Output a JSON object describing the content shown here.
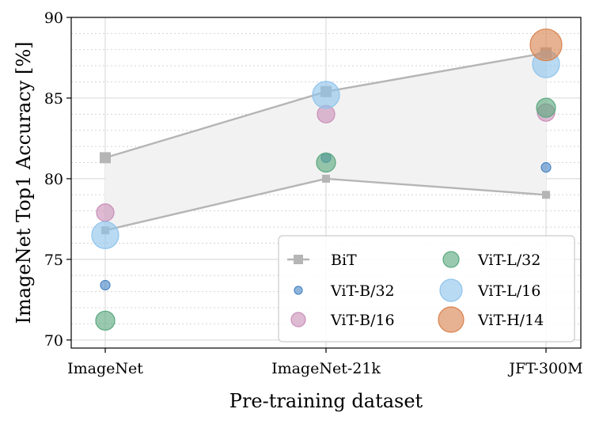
{
  "chart_data": {
    "type": "scatter",
    "title": "",
    "xlabel": "Pre-training dataset",
    "ylabel": "ImageNet Top1 Accuracy [%]",
    "categories": [
      "ImageNet",
      "ImageNet-21k",
      "JFT-300M"
    ],
    "ylim": [
      69.5,
      90
    ],
    "yticks": [
      70,
      75,
      80,
      85,
      90
    ],
    "grid": true,
    "legend_position": "bottom-right",
    "bit": {
      "name": "BiT",
      "upper": [
        81.3,
        85.4,
        87.8
      ],
      "lower": [
        76.8,
        80.0,
        79.0
      ],
      "color": "#b5b5b5",
      "fill": "#f2f2f2"
    },
    "series": [
      {
        "name": "ViT-B/32",
        "values": [
          73.4,
          81.3,
          80.7
        ],
        "color": "#4a86c5",
        "size": "xs"
      },
      {
        "name": "ViT-B/16",
        "values": [
          77.9,
          84.0,
          84.1
        ],
        "color": "#c98fb8",
        "size": "s"
      },
      {
        "name": "ViT-L/32",
        "values": [
          71.2,
          81.0,
          84.4
        ],
        "color": "#5aa87e",
        "size": "m"
      },
      {
        "name": "ViT-L/16",
        "values": [
          76.5,
          85.2,
          87.1
        ],
        "color": "#8ec4ec",
        "size": "l"
      },
      {
        "name": "ViT-H/14",
        "values": [
          null,
          null,
          88.3
        ],
        "color": "#d9824e",
        "size": "xl"
      }
    ]
  }
}
